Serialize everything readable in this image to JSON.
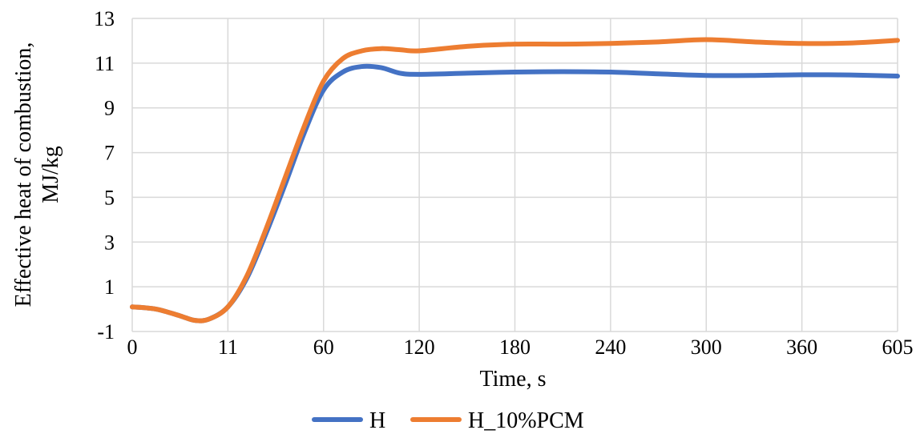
{
  "chart_data": {
    "type": "line",
    "title": "",
    "xlabel": "Time, s",
    "ylabel_lines": [
      "Effective heat of combustion,",
      "MJ/kg"
    ],
    "categories": [
      "0",
      "11",
      "60",
      "120",
      "180",
      "240",
      "300",
      "360",
      "605"
    ],
    "ylim": [
      -1,
      13
    ],
    "yticks": [
      -1,
      1,
      3,
      5,
      7,
      9,
      11,
      13
    ],
    "grid": true,
    "legend_position": "bottom",
    "series": [
      {
        "name": "H",
        "color": "#4472C4",
        "points": [
          [
            0,
            0.1
          ],
          [
            0.25,
            0.0
          ],
          [
            0.5,
            -0.3
          ],
          [
            0.65,
            -0.5
          ],
          [
            0.8,
            -0.45
          ],
          [
            1.0,
            0.1
          ],
          [
            1.2,
            1.4
          ],
          [
            1.4,
            3.4
          ],
          [
            1.6,
            5.6
          ],
          [
            1.8,
            7.9
          ],
          [
            2.0,
            9.8
          ],
          [
            2.2,
            10.6
          ],
          [
            2.4,
            10.85
          ],
          [
            2.6,
            10.8
          ],
          [
            2.8,
            10.55
          ],
          [
            3.0,
            10.5
          ],
          [
            3.5,
            10.55
          ],
          [
            4.0,
            10.6
          ],
          [
            4.5,
            10.62
          ],
          [
            5.0,
            10.6
          ],
          [
            5.5,
            10.52
          ],
          [
            6.0,
            10.45
          ],
          [
            6.5,
            10.45
          ],
          [
            7.0,
            10.48
          ],
          [
            7.5,
            10.47
          ],
          [
            8.0,
            10.42
          ]
        ]
      },
      {
        "name": "H_10%PCM",
        "color": "#ED7D31",
        "points": [
          [
            0,
            0.1
          ],
          [
            0.25,
            0.0
          ],
          [
            0.5,
            -0.3
          ],
          [
            0.65,
            -0.5
          ],
          [
            0.8,
            -0.45
          ],
          [
            1.0,
            0.1
          ],
          [
            1.2,
            1.5
          ],
          [
            1.4,
            3.6
          ],
          [
            1.6,
            5.9
          ],
          [
            1.8,
            8.2
          ],
          [
            2.0,
            10.2
          ],
          [
            2.2,
            11.2
          ],
          [
            2.4,
            11.55
          ],
          [
            2.6,
            11.65
          ],
          [
            2.8,
            11.6
          ],
          [
            3.0,
            11.55
          ],
          [
            3.5,
            11.75
          ],
          [
            4.0,
            11.85
          ],
          [
            4.5,
            11.85
          ],
          [
            5.0,
            11.88
          ],
          [
            5.5,
            11.95
          ],
          [
            6.0,
            12.05
          ],
          [
            6.5,
            11.95
          ],
          [
            7.0,
            11.88
          ],
          [
            7.5,
            11.9
          ],
          [
            8.0,
            12.02
          ]
        ]
      }
    ]
  }
}
